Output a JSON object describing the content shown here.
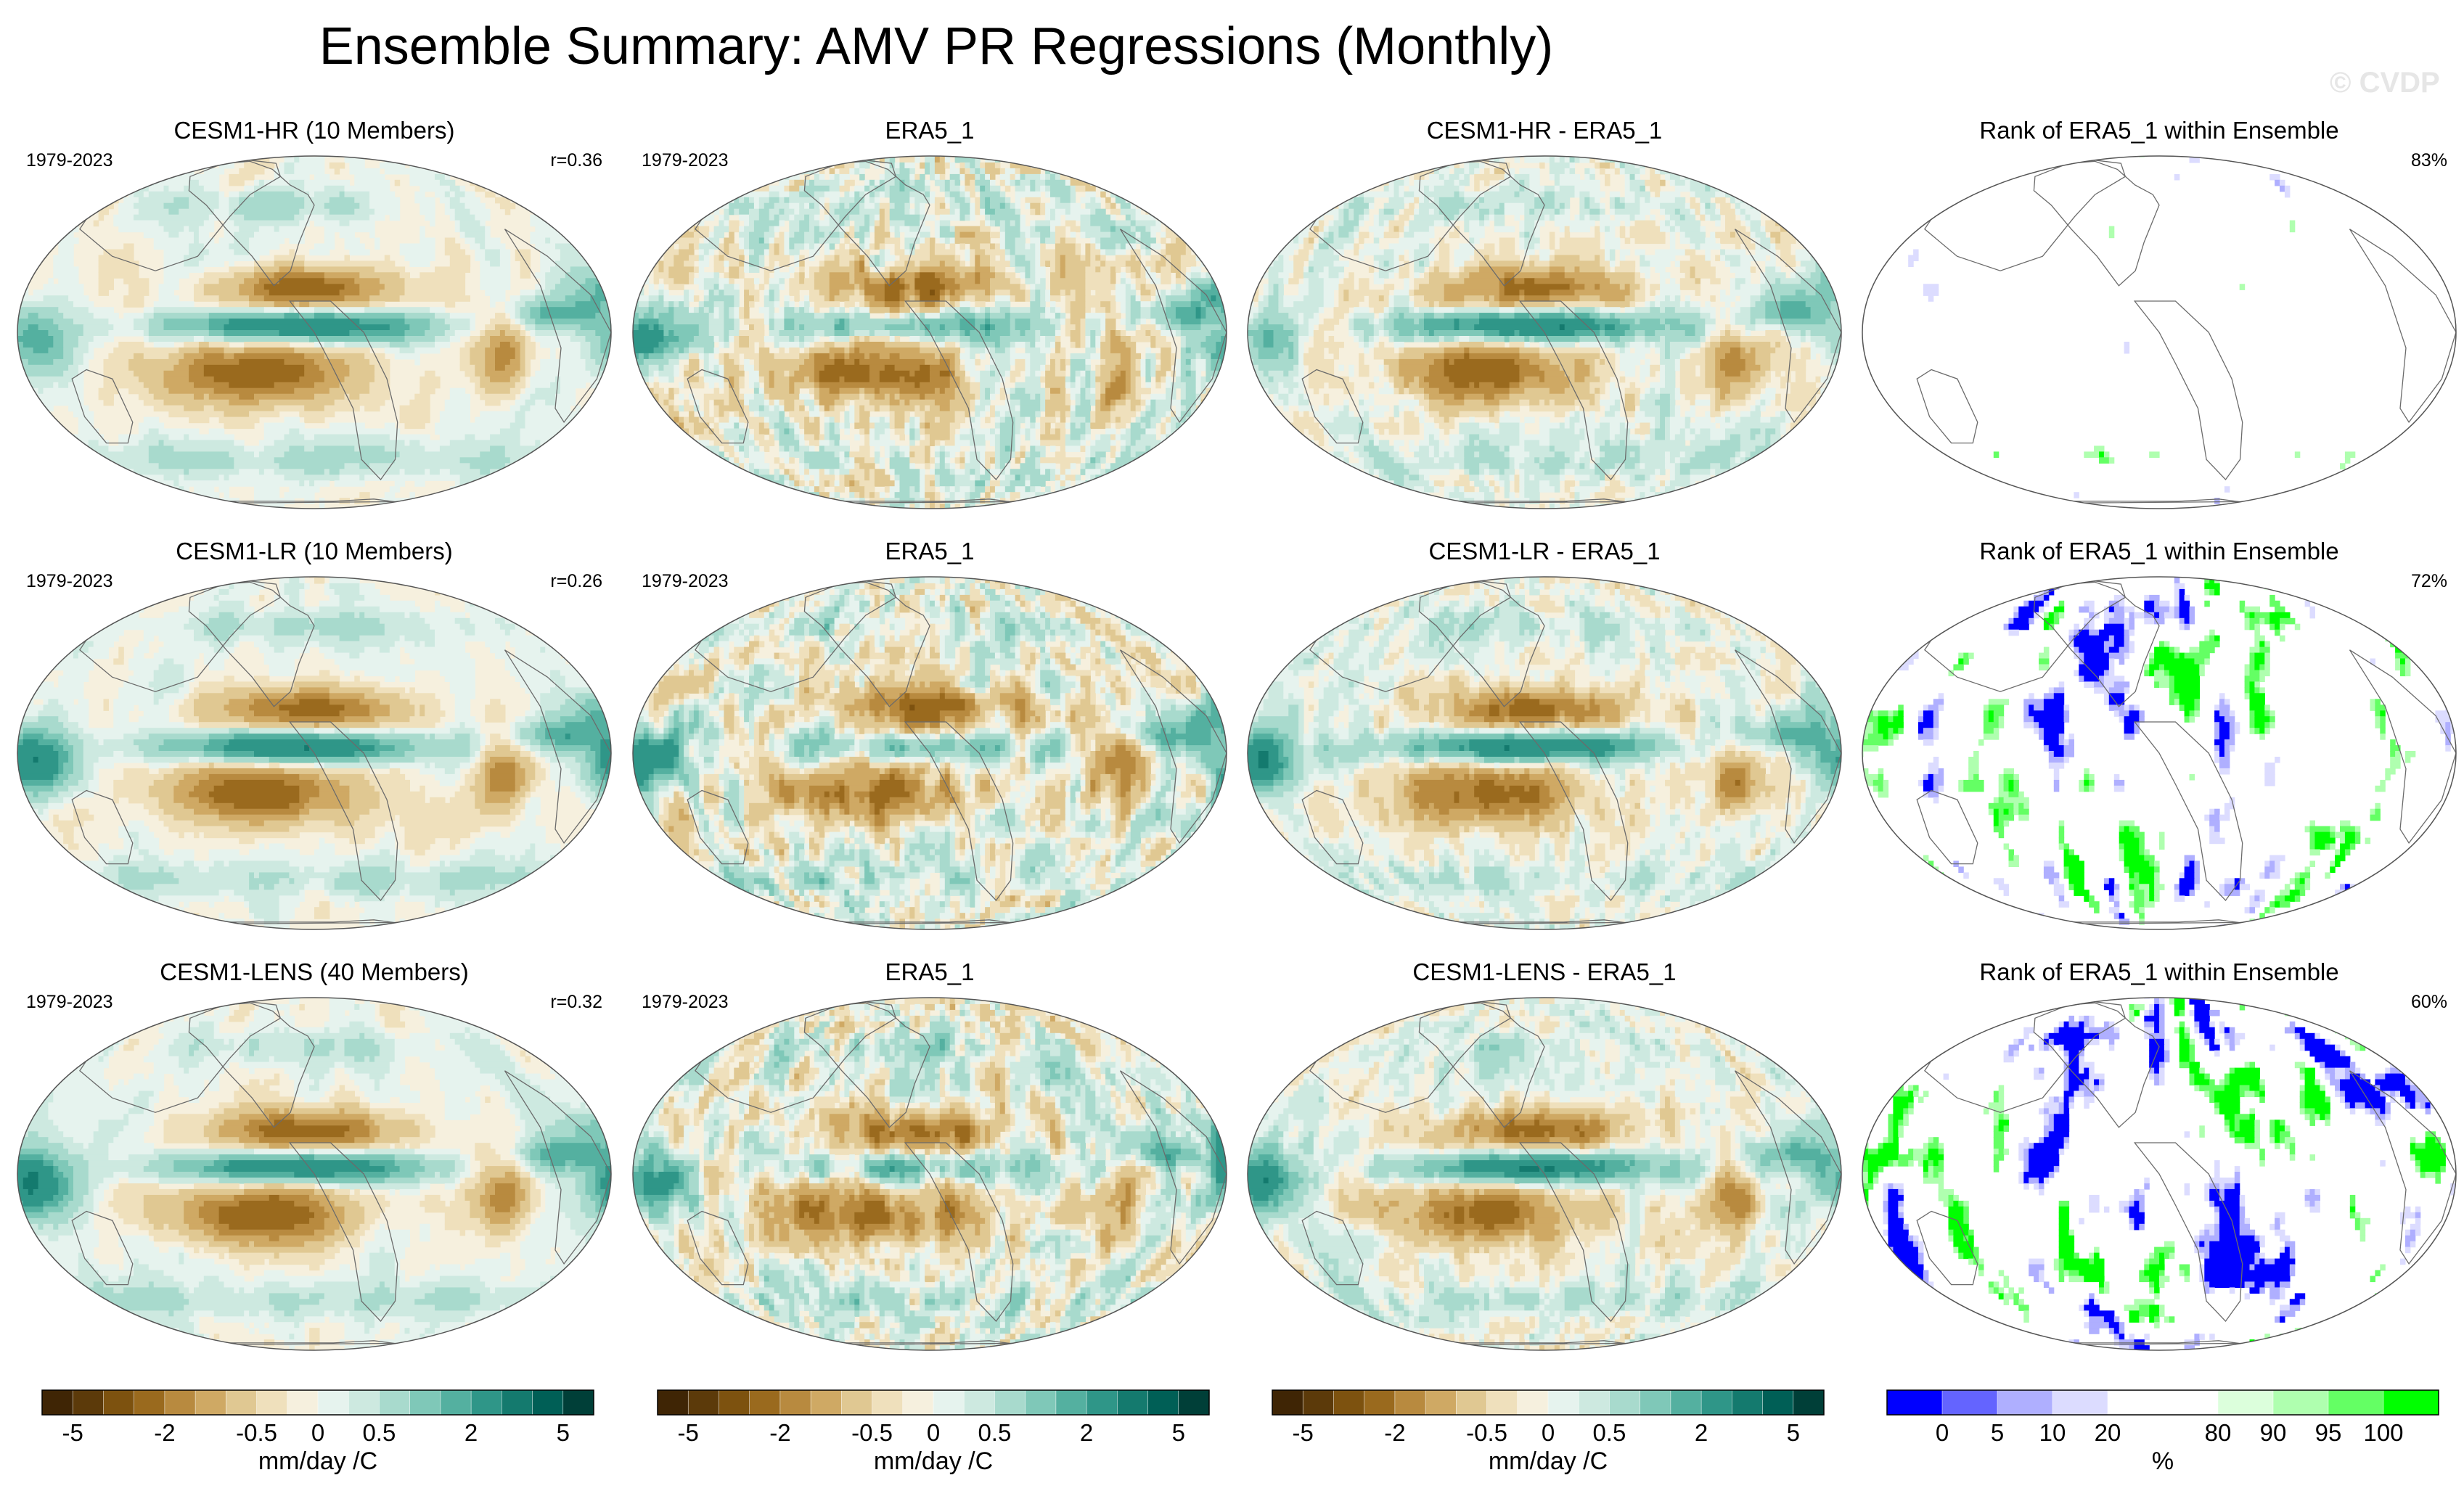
{
  "title": "Ensemble Summary: AMV PR Regressions (Monthly)",
  "watermark": "© CVDP",
  "panels": [
    {
      "title": "CESM1-HR (10 Members)",
      "years": "1979-2023",
      "stat": "r=0.36",
      "kind": "regression",
      "amp": 1.0,
      "sim": "hr"
    },
    {
      "title": "ERA5_1",
      "years": "1979-2023",
      "stat": "",
      "kind": "regression",
      "amp": 0.9,
      "sim": "obs"
    },
    {
      "title": "CESM1-HR - ERA5_1",
      "years": "",
      "stat": "",
      "kind": "difference",
      "amp": 1.0,
      "sim": "hr"
    },
    {
      "title": "Rank of ERA5_1 within Ensemble",
      "years": "",
      "stat": "83%",
      "kind": "rank",
      "amp": 0.6,
      "sim": "hr"
    },
    {
      "title": "CESM1-LR (10 Members)",
      "years": "1979-2023",
      "stat": "r=0.26",
      "kind": "regression",
      "amp": 1.0,
      "sim": "lr"
    },
    {
      "title": "ERA5_1",
      "years": "1979-2023",
      "stat": "",
      "kind": "regression",
      "amp": 0.9,
      "sim": "obs"
    },
    {
      "title": "CESM1-LR - ERA5_1",
      "years": "",
      "stat": "",
      "kind": "difference",
      "amp": 1.0,
      "sim": "lr"
    },
    {
      "title": "Rank of ERA5_1 within Ensemble",
      "years": "",
      "stat": "72%",
      "kind": "rank",
      "amp": 1.0,
      "sim": "lr"
    },
    {
      "title": "CESM1-LENS (40 Members)",
      "years": "1979-2023",
      "stat": "r=0.32",
      "kind": "regression",
      "amp": 1.0,
      "sim": "lens"
    },
    {
      "title": "ERA5_1",
      "years": "1979-2023",
      "stat": "",
      "kind": "regression",
      "amp": 0.9,
      "sim": "obs"
    },
    {
      "title": "CESM1-LENS - ERA5_1",
      "years": "",
      "stat": "",
      "kind": "difference",
      "amp": 1.0,
      "sim": "lens"
    },
    {
      "title": "Rank of ERA5_1 within Ensemble",
      "years": "",
      "stat": "60%",
      "kind": "rank",
      "amp": 1.2,
      "sim": "lens"
    }
  ],
  "colorbars": [
    {
      "label": "mm/day /C",
      "colors": [
        "#3f2505",
        "#5c3a0a",
        "#7d520f",
        "#9a6a1e",
        "#b88a3f",
        "#cfa964",
        "#e0c892",
        "#efe0bc",
        "#f6f0de",
        "#e6f3ee",
        "#cde9e0",
        "#a8dacd",
        "#7fc8b8",
        "#54b0a0",
        "#2f9688",
        "#147a6e",
        "#005f56",
        "#003f38"
      ],
      "ticks": [
        {
          "label": "-5",
          "boundary": 1
        },
        {
          "label": "-2",
          "boundary": 4
        },
        {
          "label": "-0.5",
          "boundary": 7
        },
        {
          "label": "0",
          "boundary": 9
        },
        {
          "label": "0.5",
          "boundary": 11
        },
        {
          "label": "2",
          "boundary": 14
        },
        {
          "label": "5",
          "boundary": 17
        }
      ]
    },
    {
      "label": "mm/day /C",
      "colors": [
        "#3f2505",
        "#5c3a0a",
        "#7d520f",
        "#9a6a1e",
        "#b88a3f",
        "#cfa964",
        "#e0c892",
        "#efe0bc",
        "#f6f0de",
        "#e6f3ee",
        "#cde9e0",
        "#a8dacd",
        "#7fc8b8",
        "#54b0a0",
        "#2f9688",
        "#147a6e",
        "#005f56",
        "#003f38"
      ],
      "ticks": [
        {
          "label": "-5",
          "boundary": 1
        },
        {
          "label": "-2",
          "boundary": 4
        },
        {
          "label": "-0.5",
          "boundary": 7
        },
        {
          "label": "0",
          "boundary": 9
        },
        {
          "label": "0.5",
          "boundary": 11
        },
        {
          "label": "2",
          "boundary": 14
        },
        {
          "label": "5",
          "boundary": 17
        }
      ]
    },
    {
      "label": "mm/day /C",
      "colors": [
        "#3f2505",
        "#5c3a0a",
        "#7d520f",
        "#9a6a1e",
        "#b88a3f",
        "#cfa964",
        "#e0c892",
        "#efe0bc",
        "#f6f0de",
        "#e6f3ee",
        "#cde9e0",
        "#a8dacd",
        "#7fc8b8",
        "#54b0a0",
        "#2f9688",
        "#147a6e",
        "#005f56",
        "#003f38"
      ],
      "ticks": [
        {
          "label": "-5",
          "boundary": 1
        },
        {
          "label": "-2",
          "boundary": 4
        },
        {
          "label": "-0.5",
          "boundary": 7
        },
        {
          "label": "0",
          "boundary": 9
        },
        {
          "label": "0.5",
          "boundary": 11
        },
        {
          "label": "2",
          "boundary": 14
        },
        {
          "label": "5",
          "boundary": 17
        }
      ]
    },
    {
      "label": "%",
      "colors": [
        "#0000ff",
        "#6464ff",
        "#afafff",
        "#dcdcff",
        "#ffffff",
        "#ffffff",
        "#dcffdc",
        "#afffaf",
        "#64ff64",
        "#00ff00"
      ],
      "ticks": [
        {
          "label": "0",
          "boundary": 1
        },
        {
          "label": "5",
          "boundary": 2
        },
        {
          "label": "10",
          "boundary": 3
        },
        {
          "label": "20",
          "boundary": 4
        },
        {
          "label": "80",
          "boundary": 6
        },
        {
          "label": "90",
          "boundary": 7
        },
        {
          "label": "95",
          "boundary": 8
        },
        {
          "label": "100",
          "boundary": 9
        }
      ]
    }
  ],
  "chart_data": {
    "type": "heatmap",
    "title": "Ensemble Summary: AMV PR Regressions (Monthly)",
    "layout": "3 rows x 4 columns of global maps",
    "columns": [
      "Model ensemble mean regression",
      "Observed regression (ERA5_1)",
      "Model minus observation",
      "Rank of ERA5_1 within ensemble"
    ],
    "rows": [
      "CESM1-HR (10 Members)",
      "CESM1-LR (10 Members)",
      "CESM1-LENS (40 Members)"
    ],
    "period": "1979-2023",
    "pattern_correlations": [
      {
        "model": "CESM1-HR (10 Members)",
        "r": 0.36
      },
      {
        "model": "CESM1-LR (10 Members)",
        "r": 0.26
      },
      {
        "model": "CESM1-LENS (40 Members)",
        "r": 0.32
      }
    ],
    "rank_percent_within_bounds": [
      {
        "model": "CESM1-HR",
        "percent": 83
      },
      {
        "model": "CESM1-LR",
        "percent": 72
      },
      {
        "model": "CESM1-LENS",
        "percent": 60
      }
    ],
    "regression_units": "mm/day /C",
    "regression_colorbar_ticks": [
      -5,
      -2,
      -0.5,
      0,
      0.5,
      2,
      5
    ],
    "rank_units": "%",
    "rank_colorbar_ticks": [
      0,
      5,
      10,
      20,
      80,
      90,
      95,
      100
    ]
  }
}
